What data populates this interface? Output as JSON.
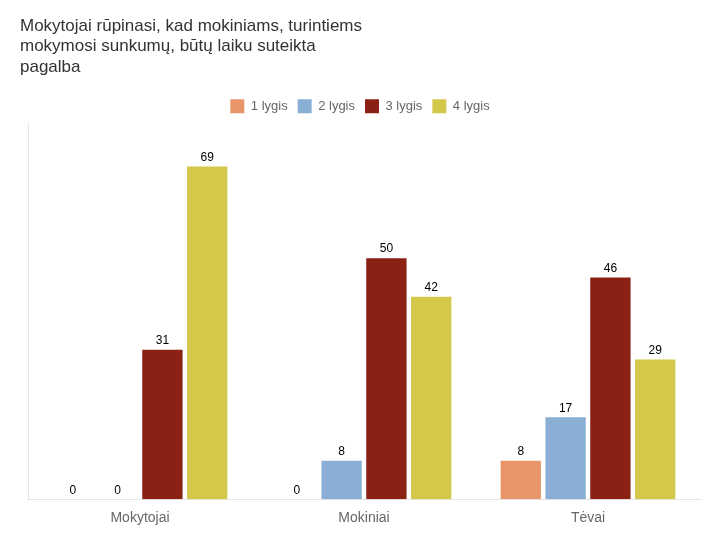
{
  "chart_data": {
    "type": "bar",
    "title": [
      "Mokytojai rūpinasi, kad mokiniams, turintiems",
      "mokymosi sunkumų, būtų laiku suteikta",
      "pagalba"
    ],
    "categories": [
      "Mokytojai",
      "Mokiniai",
      "Tėvai"
    ],
    "series": [
      {
        "name": "1 lygis",
        "color": "#E8956A",
        "values": [
          0,
          0,
          8
        ]
      },
      {
        "name": "2 lygis",
        "color": "#8AAFD4",
        "values": [
          0,
          8,
          17
        ]
      },
      {
        "name": "3 lygis",
        "color": "#8B2015",
        "values": [
          31,
          50,
          46
        ]
      },
      {
        "name": "4 lygis",
        "color": "#D4C84A",
        "values": [
          69,
          42,
          29
        ]
      }
    ],
    "ylim": [
      0,
      78
    ],
    "grid": false,
    "legend": "top",
    "data_labels": true,
    "tick_labels": "x"
  }
}
